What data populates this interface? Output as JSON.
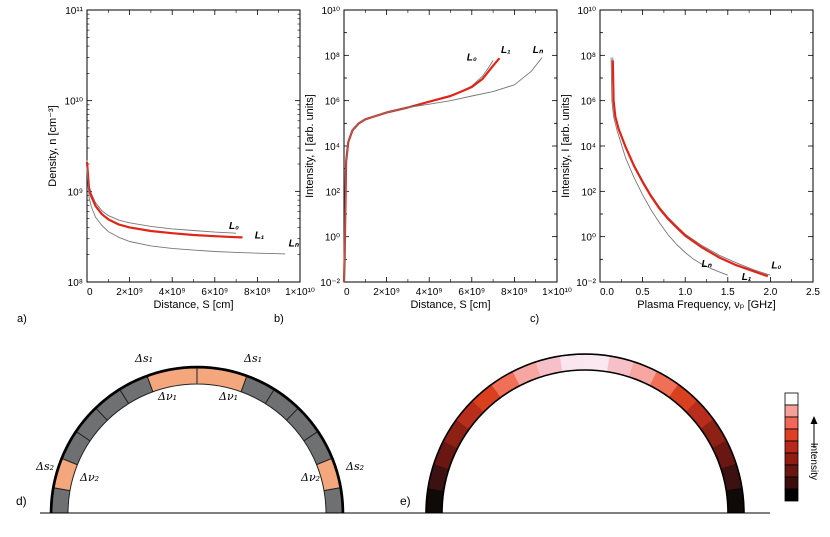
{
  "chart_data": [
    {
      "id": "a",
      "panel_label": "a)",
      "type": "line",
      "xlabel": "Distance, S [cm]",
      "ylabel": "Density, n [cm⁻³]",
      "xscale": "linear",
      "yscale": "log",
      "xlim": [
        0,
        10000000000.0
      ],
      "ylim": [
        100000000.0,
        100000000000.0
      ],
      "xticks": [
        {
          "v": 0,
          "label": "0"
        },
        {
          "v": 2000000000.0,
          "label": "2×10⁹"
        },
        {
          "v": 4000000000.0,
          "label": "4×10⁹"
        },
        {
          "v": 6000000000.0,
          "label": "6×10⁹"
        },
        {
          "v": 8000000000.0,
          "label": "8×10⁹"
        },
        {
          "v": 10000000000.0,
          "label": "1×10¹⁰"
        }
      ],
      "yticks": [
        {
          "v": 100000000.0,
          "label": "10⁸"
        },
        {
          "v": 1000000000.0,
          "label": "10⁹"
        },
        {
          "v": 10000000000.0,
          "label": "10¹⁰"
        },
        {
          "v": 100000000000.0,
          "label": "10¹¹"
        }
      ],
      "series": [
        {
          "name": "L0",
          "label": "L₀",
          "color": "#777777",
          "points": [
            [
              0,
              2200000000.0
            ],
            [
              100000000.0,
              1150000000.0
            ],
            [
              200000000.0,
              950000000.0
            ],
            [
              400000000.0,
              750000000.0
            ],
            [
              700000000.0,
              610000000.0
            ],
            [
              1000000000.0,
              540000000.0
            ],
            [
              1500000000.0,
              480000000.0
            ],
            [
              2000000000.0,
              450000000.0
            ],
            [
              3000000000.0,
              410000000.0
            ],
            [
              4000000000.0,
              385000000.0
            ],
            [
              5000000000.0,
              370000000.0
            ],
            [
              6000000000.0,
              355000000.0
            ],
            [
              7000000000.0,
              345000000.0
            ]
          ],
          "label_at": [
            6900000000.0,
            385000000.0
          ]
        },
        {
          "name": "L1",
          "label": "L₁",
          "color": "#e02418",
          "points": [
            [
              0,
              2100000000.0
            ],
            [
              100000000.0,
              1050000000.0
            ],
            [
              200000000.0,
              880000000.0
            ],
            [
              400000000.0,
              690000000.0
            ],
            [
              700000000.0,
              560000000.0
            ],
            [
              1000000000.0,
              490000000.0
            ],
            [
              1500000000.0,
              430000000.0
            ],
            [
              2000000000.0,
              400000000.0
            ],
            [
              3000000000.0,
              365000000.0
            ],
            [
              4000000000.0,
              345000000.0
            ],
            [
              5000000000.0,
              330000000.0
            ],
            [
              6000000000.0,
              320000000.0
            ],
            [
              7000000000.0,
              312000000.0
            ],
            [
              7300000000.0,
              310000000.0
            ]
          ],
          "label_at": [
            8100000000.0,
            300000000.0
          ]
        },
        {
          "name": "Ln",
          "label": "Lₙ",
          "color": "#777777",
          "points": [
            [
              0,
              1900000000.0
            ],
            [
              100000000.0,
              850000000.0
            ],
            [
              200000000.0,
              680000000.0
            ],
            [
              400000000.0,
              520000000.0
            ],
            [
              700000000.0,
              420000000.0
            ],
            [
              1000000000.0,
              360000000.0
            ],
            [
              1500000000.0,
              310000000.0
            ],
            [
              2000000000.0,
              280000000.0
            ],
            [
              3000000000.0,
              250000000.0
            ],
            [
              4000000000.0,
              235000000.0
            ],
            [
              5000000000.0,
              225000000.0
            ],
            [
              6000000000.0,
              217000000.0
            ],
            [
              7000000000.0,
              212000000.0
            ],
            [
              8000000000.0,
              208000000.0
            ],
            [
              9000000000.0,
              205000000.0
            ],
            [
              9300000000.0,
              204000000.0
            ]
          ],
          "label_at": [
            9700000000.0,
            245000000.0
          ]
        }
      ]
    },
    {
      "id": "b",
      "panel_label": "b)",
      "type": "line",
      "xlabel": "Distance, S [cm]",
      "ylabel": "Intensity, I [arb. units]",
      "xscale": "linear",
      "yscale": "log",
      "xlim": [
        0,
        10000000000.0
      ],
      "ylim": [
        0.01,
        10000000000.0
      ],
      "xticks": [
        {
          "v": 0,
          "label": "0"
        },
        {
          "v": 2000000000.0,
          "label": "2×10⁹"
        },
        {
          "v": 4000000000.0,
          "label": "4×10⁹"
        },
        {
          "v": 6000000000.0,
          "label": "6×10⁹"
        },
        {
          "v": 8000000000.0,
          "label": "8×10⁹"
        },
        {
          "v": 10000000000.0,
          "label": "1×10¹⁰"
        }
      ],
      "yticks": [
        {
          "v": 0.01,
          "label": "10⁻²"
        },
        {
          "v": 1.0,
          "label": "10⁰"
        },
        {
          "v": 100.0,
          "label": "10²"
        },
        {
          "v": 10000.0,
          "label": "10⁴"
        },
        {
          "v": 1000000.0,
          "label": "10⁶"
        },
        {
          "v": 100000000.0,
          "label": "10⁸"
        },
        {
          "v": 10000000000.0,
          "label": "10¹⁰"
        }
      ],
      "series": [
        {
          "name": "L0",
          "label": "L₀",
          "color": "#777777",
          "points": [
            [
              1000000.0,
              0.01
            ],
            [
              30000000.0,
              0.1
            ],
            [
              60000000.0,
              10.0
            ],
            [
              100000000.0,
              2000.0
            ],
            [
              200000000.0,
              15000.0
            ],
            [
              400000000.0,
              50000.0
            ],
            [
              700000000.0,
              100000.0
            ],
            [
              1000000000.0,
              150000.0
            ],
            [
              2000000000.0,
              300000.0
            ],
            [
              3000000000.0,
              500000.0
            ],
            [
              4000000000.0,
              900000.0
            ],
            [
              5000000000.0,
              1600000.0
            ],
            [
              5500000000.0,
              2500000.0
            ],
            [
              6000000000.0,
              4500000.0
            ],
            [
              6500000000.0,
              12000000.0
            ],
            [
              6800000000.0,
              30000000.0
            ],
            [
              7000000000.0,
              60000000.0
            ]
          ],
          "label_at": [
            6000000000.0,
            60000000.0
          ]
        },
        {
          "name": "L1",
          "label": "L₁",
          "color": "#e02418",
          "points": [
            [
              1000000.0,
              0.01
            ],
            [
              30000000.0,
              0.1
            ],
            [
              60000000.0,
              10.0
            ],
            [
              100000000.0,
              2000.0
            ],
            [
              200000000.0,
              15000.0
            ],
            [
              400000000.0,
              50000.0
            ],
            [
              700000000.0,
              100000.0
            ],
            [
              1000000000.0,
              150000.0
            ],
            [
              2000000000.0,
              300000.0
            ],
            [
              3000000000.0,
              500000.0
            ],
            [
              4000000000.0,
              900000.0
            ],
            [
              5000000000.0,
              1600000.0
            ],
            [
              5500000000.0,
              2500000.0
            ],
            [
              6000000000.0,
              4000000.0
            ],
            [
              6500000000.0,
              9000000.0
            ],
            [
              7000000000.0,
              35000000.0
            ],
            [
              7300000000.0,
              75000000.0
            ]
          ],
          "label_at": [
            7600000000.0,
            130000000.0
          ]
        },
        {
          "name": "Ln",
          "label": "Lₙ",
          "color": "#777777",
          "points": [
            [
              1000000.0,
              0.01
            ],
            [
              30000000.0,
              0.1
            ],
            [
              60000000.0,
              10.0
            ],
            [
              100000000.0,
              2000.0
            ],
            [
              200000000.0,
              15000.0
            ],
            [
              400000000.0,
              50000.0
            ],
            [
              700000000.0,
              100000.0
            ],
            [
              1000000000.0,
              150000.0
            ],
            [
              2000000000.0,
              300000.0
            ],
            [
              3000000000.0,
              500000.0
            ],
            [
              4000000000.0,
              700000.0
            ],
            [
              5000000000.0,
              1000000.0
            ],
            [
              6000000000.0,
              1600000.0
            ],
            [
              7000000000.0,
              2500000.0
            ],
            [
              8000000000.0,
              5000000.0
            ],
            [
              8800000000.0,
              20000000.0
            ],
            [
              9300000000.0,
              80000000.0
            ]
          ],
          "label_at": [
            9100000000.0,
            130000000.0
          ]
        }
      ]
    },
    {
      "id": "c",
      "panel_label": "c)",
      "type": "line",
      "xlabel": "Plasma Frequency, νₚ [GHz]",
      "ylabel": "Intensity, I [arb. units]",
      "xscale": "linear",
      "yscale": "log",
      "xlim": [
        0,
        2.5
      ],
      "ylim": [
        0.01,
        10000000000.0
      ],
      "xticks": [
        {
          "v": 0,
          "label": "0.0"
        },
        {
          "v": 0.5,
          "label": "0.5"
        },
        {
          "v": 1.0,
          "label": "1.0"
        },
        {
          "v": 1.5,
          "label": "1.5"
        },
        {
          "v": 2.0,
          "label": "2.0"
        },
        {
          "v": 2.5,
          "label": "2.5"
        }
      ],
      "yticks": [
        {
          "v": 0.01,
          "label": "10⁻²"
        },
        {
          "v": 1.0,
          "label": "10⁰"
        },
        {
          "v": 100.0,
          "label": "10²"
        },
        {
          "v": 10000.0,
          "label": "10⁴"
        },
        {
          "v": 1000000.0,
          "label": "10⁶"
        },
        {
          "v": 100000000.0,
          "label": "10⁸"
        },
        {
          "v": 10000000000.0,
          "label": "10¹⁰"
        }
      ],
      "series": [
        {
          "name": "Ln",
          "label": "Lₙ",
          "color": "#777777",
          "points": [
            [
              0.13,
              80000000.0
            ],
            [
              0.14,
              1000000.0
            ],
            [
              0.16,
              200000.0
            ],
            [
              0.2,
              50000.0
            ],
            [
              0.3,
              3000.0
            ],
            [
              0.4,
              400.0
            ],
            [
              0.5,
              70.0
            ],
            [
              0.6,
              15.0
            ],
            [
              0.7,
              4
            ],
            [
              0.8,
              1.2
            ],
            [
              0.9,
              0.45
            ],
            [
              1.0,
              0.2
            ],
            [
              1.1,
              0.1
            ],
            [
              1.2,
              0.06
            ],
            [
              1.3,
              0.04
            ],
            [
              1.4,
              0.028
            ],
            [
              1.5,
              0.02
            ]
          ],
          "label_at": [
            1.25,
            0.045
          ]
        },
        {
          "name": "L0",
          "label": "L₀",
          "color": "#777777",
          "points": [
            [
              0.15,
              80000000.0
            ],
            [
              0.16,
              1000000.0
            ],
            [
              0.18,
              200000.0
            ],
            [
              0.22,
              60000.0
            ],
            [
              0.3,
              10000.0
            ],
            [
              0.4,
              1500.0
            ],
            [
              0.5,
              300.0
            ],
            [
              0.6,
              70.0
            ],
            [
              0.7,
              20.0
            ],
            [
              0.8,
              7
            ],
            [
              0.9,
              3
            ],
            [
              1.0,
              1.3
            ],
            [
              1.2,
              0.4
            ],
            [
              1.4,
              0.15
            ],
            [
              1.6,
              0.07
            ],
            [
              1.8,
              0.035
            ],
            [
              2.0,
              0.02
            ]
          ],
          "label_at": [
            2.07,
            0.04
          ]
        },
        {
          "name": "L1",
          "label": "L₁",
          "color": "#e02418",
          "points": [
            [
              0.15,
              60000000.0
            ],
            [
              0.16,
              1000000.0
            ],
            [
              0.18,
              200000.0
            ],
            [
              0.22,
              55000.0
            ],
            [
              0.3,
              9000.0
            ],
            [
              0.4,
              1300.0
            ],
            [
              0.5,
              260.0
            ],
            [
              0.6,
              60.0
            ],
            [
              0.7,
              17.0
            ],
            [
              0.8,
              6
            ],
            [
              0.9,
              2.5
            ],
            [
              1.0,
              1.1
            ],
            [
              1.2,
              0.33
            ],
            [
              1.4,
              0.12
            ],
            [
              1.6,
              0.055
            ],
            [
              1.8,
              0.03
            ],
            [
              1.97,
              0.018
            ]
          ],
          "label_at": [
            1.72,
            0.012
          ]
        }
      ]
    }
  ],
  "diagram_d": {
    "panel_label": "d)",
    "segment_colors": {
      "highlight": "#f4a77c",
      "plain": "#6e7072"
    },
    "labels": {
      "ds1": "Δs₁",
      "dv1": "Δν₁",
      "ds2": "Δs₂",
      "dv2": "Δν₂"
    }
  },
  "diagram_e": {
    "panel_label": "e)",
    "legend_label": "Intensity",
    "scale_colors": [
      "#ffffff",
      "#f7a09a",
      "#f26757",
      "#e03f25",
      "#b8281a",
      "#8f1d12",
      "#6a1612",
      "#3c0d0b",
      "#000000"
    ],
    "arc_colors": [
      "#0f0908",
      "#3c1111",
      "#6a1713",
      "#8d2114",
      "#b92d1c",
      "#d9401f",
      "#f26f57",
      "#f7a6a1",
      "#f6c0c8",
      "#fae6ef",
      "#fbe9f1",
      "#f6c0c8",
      "#f7a6a1",
      "#f26f57",
      "#d9401f",
      "#b92d1c",
      "#8d2114",
      "#6a1713",
      "#3c1111",
      "#0f0908"
    ]
  }
}
